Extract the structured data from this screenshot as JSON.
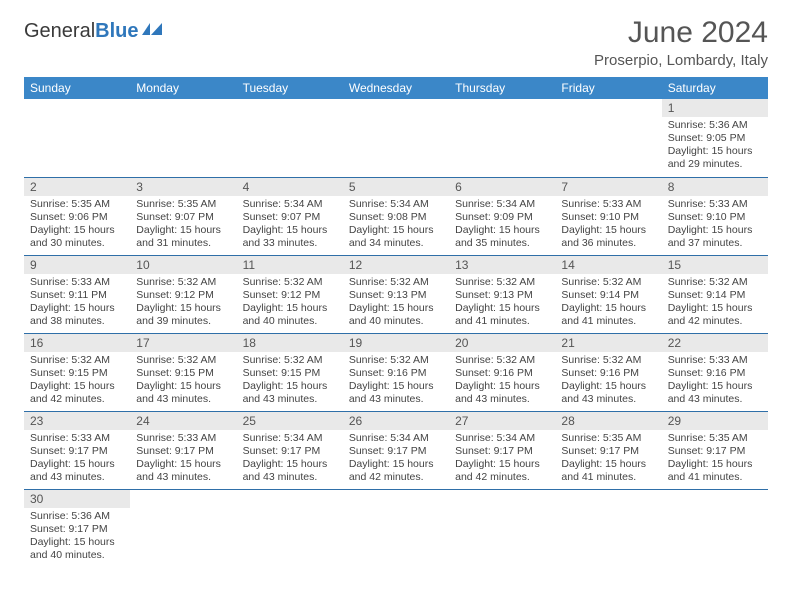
{
  "brand": {
    "part1": "General",
    "part2": "Blue"
  },
  "title": "June 2024",
  "location": "Proserpio, Lombardy, Italy",
  "header_bg": "#3b87c8",
  "weekdays": [
    "Sunday",
    "Monday",
    "Tuesday",
    "Wednesday",
    "Thursday",
    "Friday",
    "Saturday"
  ],
  "days": {
    "1": {
      "sunrise": "5:36 AM",
      "sunset": "9:05 PM",
      "daylight": "15 hours and 29 minutes."
    },
    "2": {
      "sunrise": "5:35 AM",
      "sunset": "9:06 PM",
      "daylight": "15 hours and 30 minutes."
    },
    "3": {
      "sunrise": "5:35 AM",
      "sunset": "9:07 PM",
      "daylight": "15 hours and 31 minutes."
    },
    "4": {
      "sunrise": "5:34 AM",
      "sunset": "9:07 PM",
      "daylight": "15 hours and 33 minutes."
    },
    "5": {
      "sunrise": "5:34 AM",
      "sunset": "9:08 PM",
      "daylight": "15 hours and 34 minutes."
    },
    "6": {
      "sunrise": "5:34 AM",
      "sunset": "9:09 PM",
      "daylight": "15 hours and 35 minutes."
    },
    "7": {
      "sunrise": "5:33 AM",
      "sunset": "9:10 PM",
      "daylight": "15 hours and 36 minutes."
    },
    "8": {
      "sunrise": "5:33 AM",
      "sunset": "9:10 PM",
      "daylight": "15 hours and 37 minutes."
    },
    "9": {
      "sunrise": "5:33 AM",
      "sunset": "9:11 PM",
      "daylight": "15 hours and 38 minutes."
    },
    "10": {
      "sunrise": "5:32 AM",
      "sunset": "9:12 PM",
      "daylight": "15 hours and 39 minutes."
    },
    "11": {
      "sunrise": "5:32 AM",
      "sunset": "9:12 PM",
      "daylight": "15 hours and 40 minutes."
    },
    "12": {
      "sunrise": "5:32 AM",
      "sunset": "9:13 PM",
      "daylight": "15 hours and 40 minutes."
    },
    "13": {
      "sunrise": "5:32 AM",
      "sunset": "9:13 PM",
      "daylight": "15 hours and 41 minutes."
    },
    "14": {
      "sunrise": "5:32 AM",
      "sunset": "9:14 PM",
      "daylight": "15 hours and 41 minutes."
    },
    "15": {
      "sunrise": "5:32 AM",
      "sunset": "9:14 PM",
      "daylight": "15 hours and 42 minutes."
    },
    "16": {
      "sunrise": "5:32 AM",
      "sunset": "9:15 PM",
      "daylight": "15 hours and 42 minutes."
    },
    "17": {
      "sunrise": "5:32 AM",
      "sunset": "9:15 PM",
      "daylight": "15 hours and 43 minutes."
    },
    "18": {
      "sunrise": "5:32 AM",
      "sunset": "9:15 PM",
      "daylight": "15 hours and 43 minutes."
    },
    "19": {
      "sunrise": "5:32 AM",
      "sunset": "9:16 PM",
      "daylight": "15 hours and 43 minutes."
    },
    "20": {
      "sunrise": "5:32 AM",
      "sunset": "9:16 PM",
      "daylight": "15 hours and 43 minutes."
    },
    "21": {
      "sunrise": "5:32 AM",
      "sunset": "9:16 PM",
      "daylight": "15 hours and 43 minutes."
    },
    "22": {
      "sunrise": "5:33 AM",
      "sunset": "9:16 PM",
      "daylight": "15 hours and 43 minutes."
    },
    "23": {
      "sunrise": "5:33 AM",
      "sunset": "9:17 PM",
      "daylight": "15 hours and 43 minutes."
    },
    "24": {
      "sunrise": "5:33 AM",
      "sunset": "9:17 PM",
      "daylight": "15 hours and 43 minutes."
    },
    "25": {
      "sunrise": "5:34 AM",
      "sunset": "9:17 PM",
      "daylight": "15 hours and 43 minutes."
    },
    "26": {
      "sunrise": "5:34 AM",
      "sunset": "9:17 PM",
      "daylight": "15 hours and 42 minutes."
    },
    "27": {
      "sunrise": "5:34 AM",
      "sunset": "9:17 PM",
      "daylight": "15 hours and 42 minutes."
    },
    "28": {
      "sunrise": "5:35 AM",
      "sunset": "9:17 PM",
      "daylight": "15 hours and 41 minutes."
    },
    "29": {
      "sunrise": "5:35 AM",
      "sunset": "9:17 PM",
      "daylight": "15 hours and 41 minutes."
    },
    "30": {
      "sunrise": "5:36 AM",
      "sunset": "9:17 PM",
      "daylight": "15 hours and 40 minutes."
    }
  },
  "grid": [
    [
      null,
      null,
      null,
      null,
      null,
      null,
      "1"
    ],
    [
      "2",
      "3",
      "4",
      "5",
      "6",
      "7",
      "8"
    ],
    [
      "9",
      "10",
      "11",
      "12",
      "13",
      "14",
      "15"
    ],
    [
      "16",
      "17",
      "18",
      "19",
      "20",
      "21",
      "22"
    ],
    [
      "23",
      "24",
      "25",
      "26",
      "27",
      "28",
      "29"
    ],
    [
      "30",
      null,
      null,
      null,
      null,
      null,
      null
    ]
  ],
  "labels": {
    "sunrise": "Sunrise: ",
    "sunset": "Sunset: ",
    "daylight": "Daylight: "
  }
}
